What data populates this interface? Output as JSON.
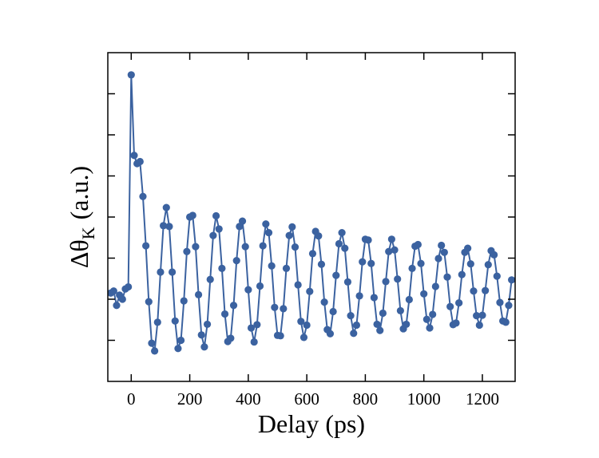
{
  "chart_data": {
    "type": "line",
    "xlabel": "Delay (ps)",
    "ylabel": {
      "symbol": "Δθ",
      "subscript": "K",
      "unit": "(a.u.)"
    },
    "xlim": [
      -80,
      1312
    ],
    "ylim": [
      0,
      8
    ],
    "xticks": [
      0,
      200,
      400,
      600,
      800,
      1000,
      1200
    ],
    "yticks": [
      1,
      2,
      3,
      4,
      5,
      6,
      7
    ],
    "markers": true,
    "series": [
      {
        "color": "#3b62a0",
        "x": [
          -70,
          -60,
          -50,
          -40,
          -30,
          -20,
          -10,
          0,
          10,
          20,
          30,
          40,
          50,
          60,
          70,
          80,
          90,
          100,
          110,
          120,
          130,
          140,
          150,
          160,
          170,
          180,
          190,
          200,
          210,
          220,
          230,
          240,
          250,
          260,
          270,
          280,
          290,
          300,
          310,
          320,
          330,
          340,
          350,
          360,
          370,
          380,
          390,
          400,
          410,
          420,
          430,
          440,
          450,
          460,
          470,
          480,
          490,
          500,
          510,
          520,
          530,
          540,
          550,
          560,
          570,
          580,
          590,
          600,
          610,
          620,
          630,
          640,
          650,
          660,
          670,
          680,
          690,
          700,
          710,
          720,
          730,
          740,
          750,
          760,
          770,
          780,
          790,
          800,
          810,
          820,
          830,
          840,
          850,
          860,
          870,
          880,
          890,
          900,
          910,
          920,
          930,
          940,
          950,
          960,
          970,
          980,
          990,
          1000,
          1010,
          1020,
          1030,
          1040,
          1050,
          1060,
          1070,
          1080,
          1090,
          1100,
          1110,
          1120,
          1130,
          1140,
          1150,
          1160,
          1170,
          1180,
          1190,
          1200,
          1210,
          1220,
          1230,
          1240,
          1250,
          1260,
          1270,
          1280,
          1290,
          1300
        ],
        "values": [
          2.15,
          2.2,
          1.85,
          2.1,
          2.0,
          2.25,
          2.3,
          7.46,
          5.5,
          5.3,
          5.35,
          4.5,
          3.3,
          1.94,
          0.93,
          0.74,
          1.44,
          2.66,
          3.79,
          4.23,
          3.77,
          2.66,
          1.47,
          0.8,
          1.0,
          1.96,
          3.16,
          4.0,
          4.04,
          3.28,
          2.11,
          1.13,
          0.84,
          1.39,
          2.48,
          3.55,
          4.03,
          3.71,
          2.75,
          1.64,
          0.97,
          1.05,
          1.85,
          2.94,
          3.77,
          3.9,
          3.28,
          2.23,
          1.3,
          0.96,
          1.38,
          2.32,
          3.3,
          3.83,
          3.62,
          2.81,
          1.8,
          1.12,
          1.11,
          1.77,
          2.75,
          3.55,
          3.76,
          3.27,
          2.35,
          1.46,
          1.07,
          1.37,
          2.19,
          3.11,
          3.65,
          3.54,
          2.85,
          1.93,
          1.26,
          1.16,
          1.7,
          2.58,
          3.35,
          3.62,
          3.24,
          2.42,
          1.6,
          1.17,
          1.37,
          2.08,
          2.91,
          3.46,
          3.44,
          2.87,
          2.04,
          1.39,
          1.24,
          1.66,
          2.43,
          3.16,
          3.46,
          3.2,
          2.49,
          1.72,
          1.28,
          1.39,
          1.99,
          2.75,
          3.29,
          3.33,
          2.87,
          2.13,
          1.51,
          1.3,
          1.63,
          2.31,
          2.99,
          3.31,
          3.14,
          2.54,
          1.82,
          1.38,
          1.42,
          1.91,
          2.6,
          3.14,
          3.24,
          2.86,
          2.2,
          1.6,
          1.37,
          1.61,
          2.21,
          2.84,
          3.18,
          3.08,
          2.56,
          1.92,
          1.47,
          1.44,
          1.85,
          2.47
        ]
      }
    ]
  }
}
